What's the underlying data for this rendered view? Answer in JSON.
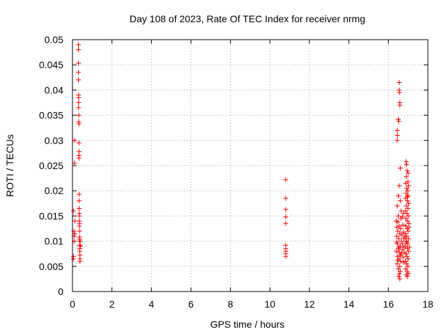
{
  "chart_data": {
    "type": "scatter",
    "title": "Day 108 of 2023, Rate Of TEC Index for receiver nrmg",
    "xlabel": "GPS time / hours",
    "ylabel": "ROTI / TECUs",
    "xlim": [
      0,
      18
    ],
    "ylim": [
      0,
      0.05
    ],
    "x_ticks": [
      "0",
      "2",
      "4",
      "6",
      "8",
      "10",
      "12",
      "14",
      "16",
      "18"
    ],
    "y_ticks": [
      "0",
      "0.005",
      "0.01",
      "0.015",
      "0.02",
      "0.025",
      "0.03",
      "0.035",
      "0.04",
      "0.045",
      "0.05"
    ],
    "grid": true,
    "marker": "plus",
    "marker_color": "#ff0000",
    "series": [
      {
        "points": [
          [
            0.05,
            0.007
          ],
          [
            0.05,
            0.0065
          ],
          [
            0.05,
            0.016
          ],
          [
            0.07,
            0.012
          ],
          [
            0.08,
            0.011
          ],
          [
            0.08,
            0.01
          ],
          [
            0.1,
            0.03
          ],
          [
            0.1,
            0.0255
          ],
          [
            0.12,
            0.014
          ],
          [
            0.12,
            0.0115
          ],
          [
            0.3,
            0.049
          ],
          [
            0.3,
            0.048
          ],
          [
            0.3,
            0.0453
          ],
          [
            0.3,
            0.0435
          ],
          [
            0.3,
            0.042
          ],
          [
            0.31,
            0.039
          ],
          [
            0.31,
            0.0385
          ],
          [
            0.31,
            0.0375
          ],
          [
            0.31,
            0.0365
          ],
          [
            0.32,
            0.035
          ],
          [
            0.32,
            0.0337
          ],
          [
            0.33,
            0.0333
          ],
          [
            0.33,
            0.0295
          ],
          [
            0.33,
            0.0278
          ],
          [
            0.33,
            0.027
          ],
          [
            0.33,
            0.0265
          ],
          [
            0.34,
            0.0193
          ],
          [
            0.34,
            0.018
          ],
          [
            0.34,
            0.0165
          ],
          [
            0.34,
            0.0155
          ],
          [
            0.35,
            0.015
          ],
          [
            0.35,
            0.014
          ],
          [
            0.35,
            0.0135
          ],
          [
            0.35,
            0.013
          ],
          [
            0.36,
            0.012
          ],
          [
            0.36,
            0.0108
          ],
          [
            0.36,
            0.0104
          ],
          [
            0.36,
            0.01
          ],
          [
            0.37,
            0.0092
          ],
          [
            0.37,
            0.0085
          ],
          [
            0.37,
            0.008
          ],
          [
            0.38,
            0.0072
          ],
          [
            0.38,
            0.0065
          ],
          [
            0.38,
            0.006
          ],
          [
            0.39,
            0.01
          ],
          [
            0.4,
            0.009
          ],
          [
            10.8,
            0.0222
          ],
          [
            10.8,
            0.0185
          ],
          [
            10.8,
            0.0163
          ],
          [
            10.8,
            0.0148
          ],
          [
            10.8,
            0.0135
          ],
          [
            10.8,
            0.0092
          ],
          [
            10.8,
            0.0085
          ],
          [
            10.8,
            0.008
          ],
          [
            10.8,
            0.0075
          ],
          [
            10.8,
            0.007
          ],
          [
            16.45,
            0.032
          ],
          [
            16.45,
            0.03
          ],
          [
            16.46,
            0.031
          ],
          [
            16.5,
            0.0342
          ],
          [
            16.52,
            0.0338
          ],
          [
            16.55,
            0.0415
          ],
          [
            16.55,
            0.04
          ],
          [
            16.56,
            0.0395
          ],
          [
            16.58,
            0.0375
          ],
          [
            16.58,
            0.037
          ],
          [
            16.6,
            0.0245
          ],
          [
            16.55,
            0.021
          ],
          [
            16.5,
            0.019
          ],
          [
            16.6,
            0.018
          ],
          [
            16.45,
            0.017
          ],
          [
            16.65,
            0.016
          ],
          [
            16.5,
            0.015
          ],
          [
            16.4,
            0.014
          ],
          [
            16.55,
            0.013
          ],
          [
            16.62,
            0.0125
          ],
          [
            16.48,
            0.012
          ],
          [
            16.58,
            0.0115
          ],
          [
            16.42,
            0.011
          ],
          [
            16.52,
            0.0105
          ],
          [
            16.65,
            0.01
          ],
          [
            16.45,
            0.0095
          ],
          [
            16.6,
            0.009
          ],
          [
            16.5,
            0.0085
          ],
          [
            16.4,
            0.008
          ],
          [
            16.56,
            0.0078
          ],
          [
            16.66,
            0.0075
          ],
          [
            16.46,
            0.007
          ],
          [
            16.54,
            0.0065
          ],
          [
            16.62,
            0.006
          ],
          [
            16.44,
            0.0055
          ],
          [
            16.58,
            0.005
          ],
          [
            16.5,
            0.0045
          ],
          [
            16.6,
            0.004
          ],
          [
            16.55,
            0.0035
          ],
          [
            16.52,
            0.003
          ],
          [
            16.58,
            0.0025
          ],
          [
            16.42,
            0.0098
          ],
          [
            16.68,
            0.0112
          ],
          [
            16.48,
            0.0138
          ],
          [
            16.64,
            0.0145
          ],
          [
            16.53,
            0.0088
          ],
          [
            16.47,
            0.0062
          ],
          [
            16.61,
            0.0072
          ],
          [
            16.7,
            0.0083
          ],
          [
            16.43,
            0.0128
          ],
          [
            16.75,
            0.0118
          ],
          [
            16.72,
            0.0095
          ],
          [
            16.78,
            0.0105
          ],
          [
            16.74,
            0.0068
          ],
          [
            16.8,
            0.0078
          ],
          [
            16.76,
            0.0058
          ],
          [
            16.73,
            0.0132
          ],
          [
            16.77,
            0.0155
          ],
          [
            16.71,
            0.0148
          ],
          [
            16.79,
            0.0088
          ],
          [
            16.9,
            0.0258
          ],
          [
            16.92,
            0.0252
          ],
          [
            16.95,
            0.024
          ],
          [
            17.0,
            0.0235
          ],
          [
            16.88,
            0.0215
          ],
          [
            17.02,
            0.021
          ],
          [
            16.93,
            0.0205
          ],
          [
            16.98,
            0.02
          ],
          [
            16.9,
            0.0195
          ],
          [
            17.0,
            0.019
          ],
          [
            16.87,
            0.0185
          ],
          [
            16.96,
            0.018
          ],
          [
            17.03,
            0.0175
          ],
          [
            16.91,
            0.017
          ],
          [
            16.99,
            0.0165
          ],
          [
            16.86,
            0.016
          ],
          [
            16.94,
            0.0155
          ],
          [
            17.01,
            0.015
          ],
          [
            16.89,
            0.0145
          ],
          [
            16.97,
            0.014
          ],
          [
            17.04,
            0.0135
          ],
          [
            16.88,
            0.013
          ],
          [
            16.95,
            0.0125
          ],
          [
            17.0,
            0.012
          ],
          [
            16.85,
            0.0115
          ],
          [
            16.93,
            0.011
          ],
          [
            17.02,
            0.0105
          ],
          [
            16.9,
            0.01
          ],
          [
            16.98,
            0.0095
          ],
          [
            16.87,
            0.009
          ],
          [
            16.96,
            0.0085
          ],
          [
            17.03,
            0.008
          ],
          [
            16.89,
            0.0075
          ],
          [
            16.94,
            0.007
          ],
          [
            17.0,
            0.0065
          ],
          [
            16.86,
            0.006
          ],
          [
            16.92,
            0.0055
          ],
          [
            16.99,
            0.005
          ],
          [
            16.88,
            0.0045
          ],
          [
            16.95,
            0.004
          ],
          [
            17.01,
            0.0036
          ],
          [
            16.9,
            0.0033
          ],
          [
            16.97,
            0.003
          ],
          [
            16.93,
            0.0098
          ],
          [
            17.05,
            0.0128
          ],
          [
            16.84,
            0.0108
          ],
          [
            17.06,
            0.0088
          ],
          [
            16.91,
            0.0228
          ],
          [
            16.99,
            0.0218
          ],
          [
            16.96,
            0.0188
          ]
        ]
      }
    ]
  }
}
